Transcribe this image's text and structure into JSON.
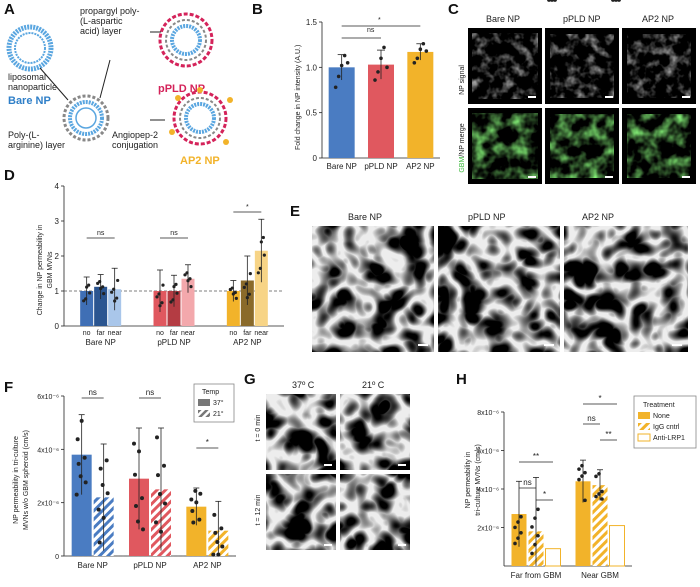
{
  "panels": {
    "a": {
      "letter": "A",
      "bare_np_label": "Bare NP",
      "liposomal_label": "liposomal\nnanoparticle",
      "propargyl_label": "propargyl poly-\n(L-aspartic\nacid) layer",
      "poly_arg_label": "Poly-(L-\narginine) layer",
      "angiopep_label": "Angiopep-2\nconjugation",
      "ppld_np_label": "pPLD NP",
      "ap2_np_label": "AP2 NP"
    },
    "b": {
      "letter": "B",
      "ylabel": "Fold change in NP intensity (A.U.)",
      "sig_ns": "ns",
      "sig_star": "*"
    },
    "c": {
      "letter": "C",
      "col1": "Bare NP",
      "col2": "pPLD NP",
      "col3": "AP2 NP",
      "row1": "NP signal",
      "row2_a": "GBM",
      "row2_b": "/NP merge"
    },
    "d": {
      "letter": "D",
      "ylabel_1": "Change in NP permeability in",
      "ylabel_2": "GBM MVNs",
      "sig1": "ns",
      "sig2": "ns",
      "sig3": "*",
      "sub": [
        "no",
        "far",
        "near"
      ]
    },
    "e": {
      "letter": "E",
      "col1": "Bare NP",
      "col2": "pPLD NP",
      "col3": "AP2 NP"
    },
    "f": {
      "letter": "F",
      "ylabel_1": "NP permeability in tri-culture",
      "ylabel_2": "MVNs w/o GBM spheroid (cm/s)",
      "legend_title": "Temp",
      "legend_37": "37°",
      "legend_21": "21°",
      "sig1": "ns",
      "sig2": "ns",
      "sig3": "*",
      "yticks": [
        "6x10⁻⁶",
        "4x10⁻⁶",
        "2x10⁻⁶",
        "0"
      ]
    },
    "g": {
      "letter": "G",
      "col1": "37º C",
      "col2": "21º C",
      "row1": "t = 0 min",
      "row2": "t = 12 min"
    },
    "h": {
      "letter": "H",
      "ylabel_1": "NP permeability in",
      "ylabel_2": "tri-culture MVNs (cm/s)",
      "legend_title": "Treatment",
      "legend_none": "None",
      "legend_igg": "IgG cntrl",
      "legend_lrp1": "Anti-LRP1",
      "group1": "Far from GBM",
      "group2": "Near GBM",
      "yticks": [
        "8x10⁻⁶",
        "6x10⁻⁶",
        "4x10⁻⁶",
        "2x10⁻⁶"
      ],
      "sig": [
        "**",
        "ns",
        "*",
        "*",
        "ns",
        "**"
      ]
    }
  },
  "chart_data": [
    {
      "type": "bar",
      "panel": "B",
      "categories": [
        "Bare NP",
        "pPLD NP",
        "AP2 NP"
      ],
      "values": [
        1.0,
        1.03,
        1.17
      ],
      "errors": [
        0.14,
        0.16,
        0.09
      ],
      "yticks": [
        "0",
        "0.5",
        "1.0",
        "1.5"
      ],
      "ylim": [
        0,
        1.5
      ],
      "colors": [
        "#4a7cc2",
        "#e0585f",
        "#f2b32a"
      ]
    },
    {
      "type": "bar",
      "panel": "D",
      "groups": [
        "Bare NP",
        "pPLD NP",
        "AP2 NP"
      ],
      "sub": [
        "no",
        "far",
        "near"
      ],
      "values": [
        [
          1.0,
          1.12,
          1.05
        ],
        [
          1.0,
          1.0,
          1.35
        ],
        [
          1.0,
          1.3,
          2.15
        ]
      ],
      "errors": [
        [
          0.4,
          0.35,
          0.6
        ],
        [
          0.6,
          0.45,
          0.4
        ],
        [
          0.3,
          0.7,
          0.9
        ]
      ],
      "yticks": [
        "0",
        "1",
        "2",
        "3",
        "4"
      ],
      "ylim": [
        0,
        4
      ]
    },
    {
      "type": "bar",
      "panel": "F",
      "categories": [
        "Bare NP",
        "pPLD NP",
        "AP2 NP"
      ],
      "series": [
        {
          "name": "37°",
          "values": [
            3.8,
            2.9,
            1.85
          ]
        },
        {
          "name": "21°",
          "values": [
            2.2,
            2.5,
            0.95
          ]
        }
      ],
      "errors": [
        [
          1.5,
          2.0
        ],
        [
          1.9,
          2.3
        ],
        [
          0.7,
          1.1
        ]
      ],
      "ylim": [
        0,
        6
      ]
    },
    {
      "type": "bar",
      "panel": "H",
      "categories": [
        "Far from GBM",
        "Near GBM"
      ],
      "series": [
        {
          "name": "None",
          "values": [
            2.7,
            4.4
          ]
        },
        {
          "name": "IgG cntrl",
          "values": [
            1.8,
            4.2
          ]
        },
        {
          "name": "Anti-LRP1",
          "values": [
            0.9,
            2.1
          ]
        }
      ],
      "errors": [
        [
          1.7,
          2.8
        ],
        [
          1.1,
          0.8
        ],
        [
          0.2,
          0.6
        ]
      ],
      "ylim": [
        0,
        8
      ]
    }
  ]
}
